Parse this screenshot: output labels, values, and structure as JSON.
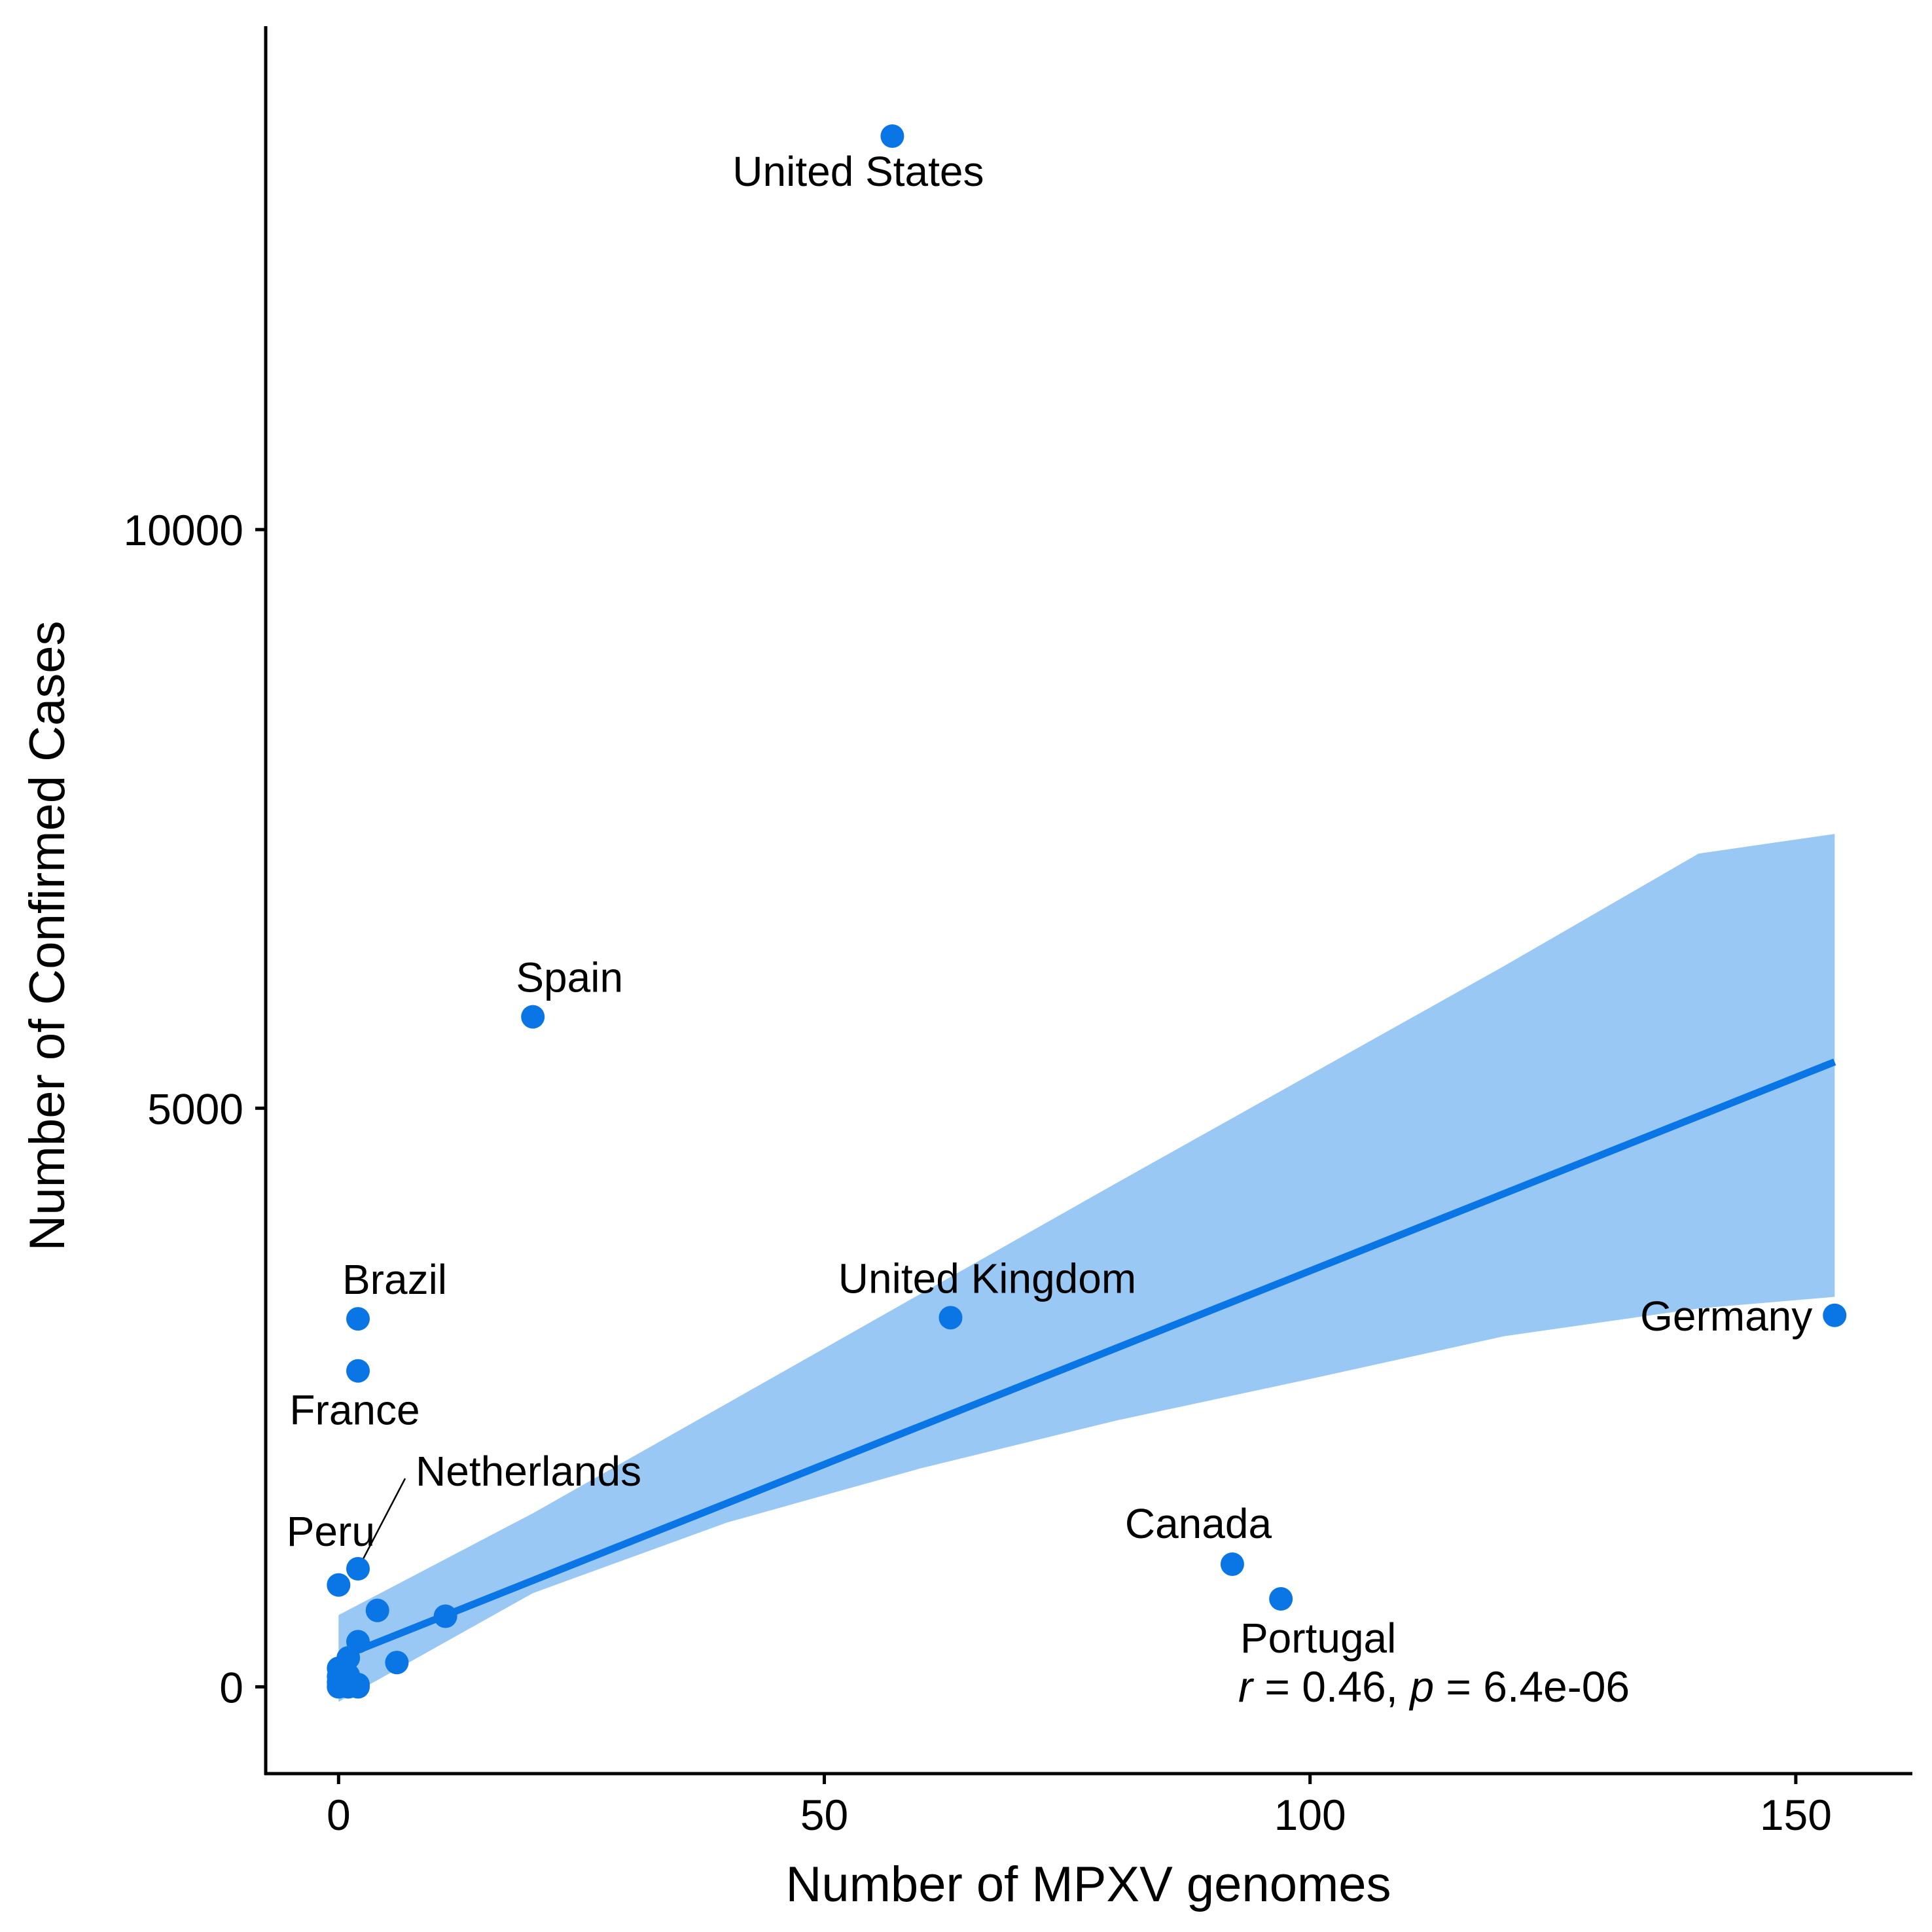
{
  "chart_data": {
    "type": "scatter",
    "title": "",
    "xlabel": "Number of MPXV genomes",
    "ylabel": "Number of Confirmed Cases",
    "xlim": [
      -7.5,
      162
    ],
    "ylim": [
      -750,
      14350
    ],
    "x_ticks": [
      {
        "value": 0,
        "label": "0"
      },
      {
        "value": 50,
        "label": "50"
      },
      {
        "value": 100,
        "label": "100"
      },
      {
        "value": 150,
        "label": "150"
      }
    ],
    "y_ticks": [
      {
        "value": 0,
        "label": "0"
      },
      {
        "value": 5000,
        "label": "5000"
      },
      {
        "value": 10000,
        "label": "10000"
      }
    ],
    "grid": false,
    "legend": "none",
    "point_color": "#0a76e6",
    "line_color": "#0a76e6",
    "band_color": "#9ac8f5",
    "labeled_points": [
      {
        "name": "United States",
        "x": 57,
        "y": 13400
      },
      {
        "name": "Spain",
        "x": 20,
        "y": 5790
      },
      {
        "name": "United Kingdom",
        "x": 63,
        "y": 3190
      },
      {
        "name": "Germany",
        "x": 154,
        "y": 3210
      },
      {
        "name": "Brazil",
        "x": 2,
        "y": 3180
      },
      {
        "name": "France",
        "x": 2,
        "y": 2730
      },
      {
        "name": "Netherlands",
        "x": 2,
        "y": 1020
      },
      {
        "name": "Peru",
        "x": 0,
        "y": 880
      },
      {
        "name": "Canada",
        "x": 92,
        "y": 1060
      },
      {
        "name": "Portugal",
        "x": 97,
        "y": 760
      }
    ],
    "other_points": [
      {
        "x": 4,
        "y": 660
      },
      {
        "x": 11,
        "y": 610
      },
      {
        "x": 2,
        "y": 390
      },
      {
        "x": 6,
        "y": 210
      },
      {
        "x": 1,
        "y": 250
      },
      {
        "x": 0,
        "y": 160
      },
      {
        "x": 0,
        "y": 90
      },
      {
        "x": 1,
        "y": 100
      },
      {
        "x": 0,
        "y": 40
      },
      {
        "x": 0,
        "y": 0
      },
      {
        "x": 1,
        "y": 0
      },
      {
        "x": 2,
        "y": 0
      },
      {
        "x": 2,
        "y": 20
      }
    ],
    "regression": {
      "x": [
        0,
        154
      ],
      "y": [
        250,
        5400
      ]
    },
    "confidence_band": {
      "x": [
        0,
        20,
        40,
        60,
        80,
        100,
        120,
        140,
        154
      ],
      "upper": [
        620,
        1500,
        2450,
        3400,
        4350,
        5290,
        6230,
        7200,
        7370
      ],
      "lower": [
        -130,
        810,
        1420,
        1890,
        2300,
        2660,
        3030,
        3270,
        3370
      ]
    },
    "annotation": {
      "r_symbol": "r",
      "r_text": " = 0.46, ",
      "p_symbol": "p",
      "p_text": " = 6.4e-06"
    }
  }
}
